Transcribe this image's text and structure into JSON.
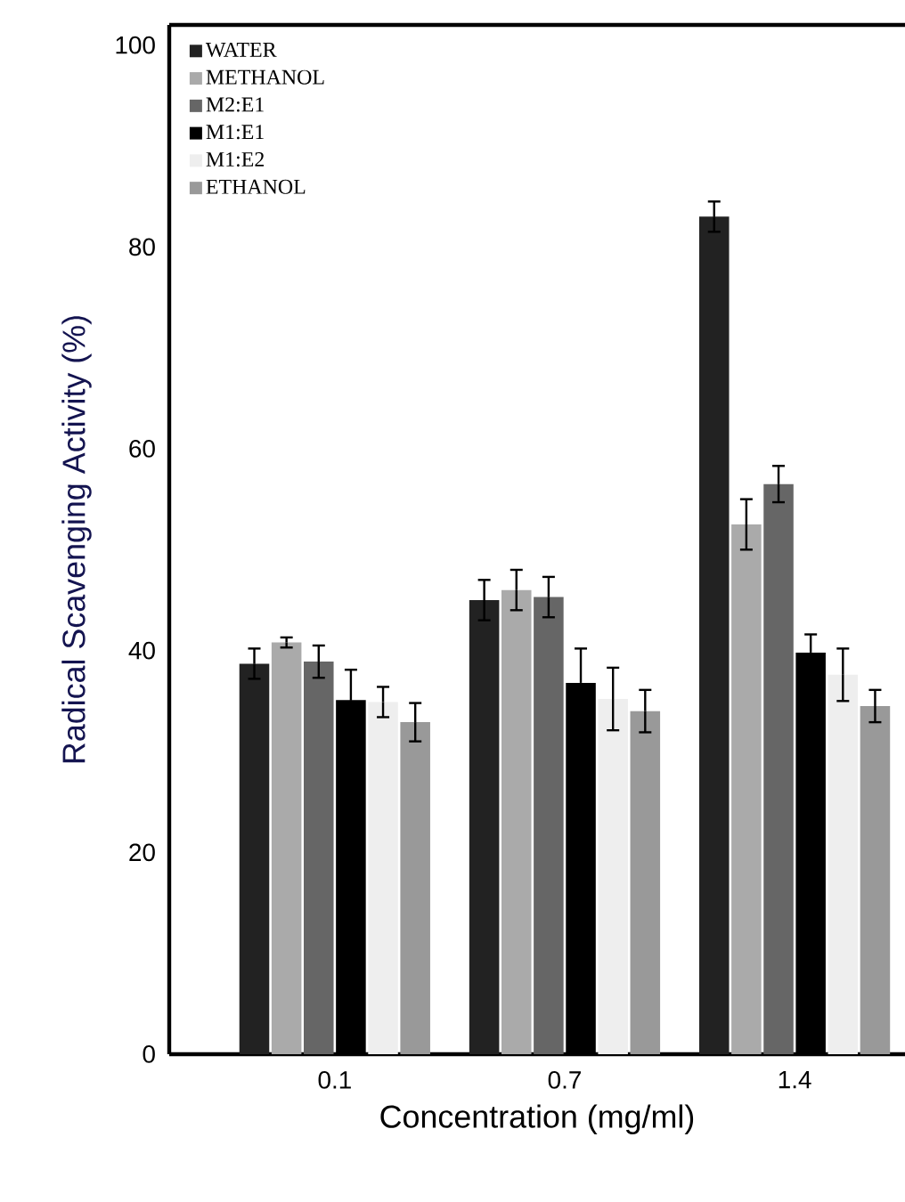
{
  "chart_data": {
    "type": "bar",
    "xlabel": "Concentration (mg/ml)",
    "ylabel": "Radical Scavenging Activity (%)",
    "categories": [
      "0.1",
      "0.7",
      "1.4"
    ],
    "series": [
      {
        "name": "WATER",
        "color": "#222222",
        "values": [
          38.7,
          45.0,
          83.0
        ],
        "errors": [
          1.5,
          2.0,
          1.5
        ]
      },
      {
        "name": "METHANOL",
        "color": "#aaaaaa",
        "values": [
          40.8,
          46.0,
          52.5
        ],
        "errors": [
          0.5,
          2.0,
          2.5
        ]
      },
      {
        "name": "M2:E1",
        "color": "#666666",
        "values": [
          38.9,
          45.3,
          56.5
        ],
        "errors": [
          1.6,
          2.0,
          1.8
        ]
      },
      {
        "name": "M1:E1",
        "color": "#000000",
        "values": [
          35.1,
          36.8,
          39.8
        ],
        "errors": [
          3.0,
          3.4,
          1.8
        ]
      },
      {
        "name": "M1:E2",
        "color": "#eeeeee",
        "values": [
          34.9,
          35.2,
          37.6
        ],
        "errors": [
          1.5,
          3.1,
          2.6
        ]
      },
      {
        "name": "ETHANOL",
        "color": "#999999",
        "values": [
          32.9,
          34.0,
          34.5
        ],
        "errors": [
          1.9,
          2.1,
          1.6
        ]
      }
    ],
    "ylim": [
      0,
      102
    ],
    "yticks": [
      0,
      20,
      40,
      60,
      80,
      100
    ],
    "grid": false,
    "legend": "top left"
  }
}
